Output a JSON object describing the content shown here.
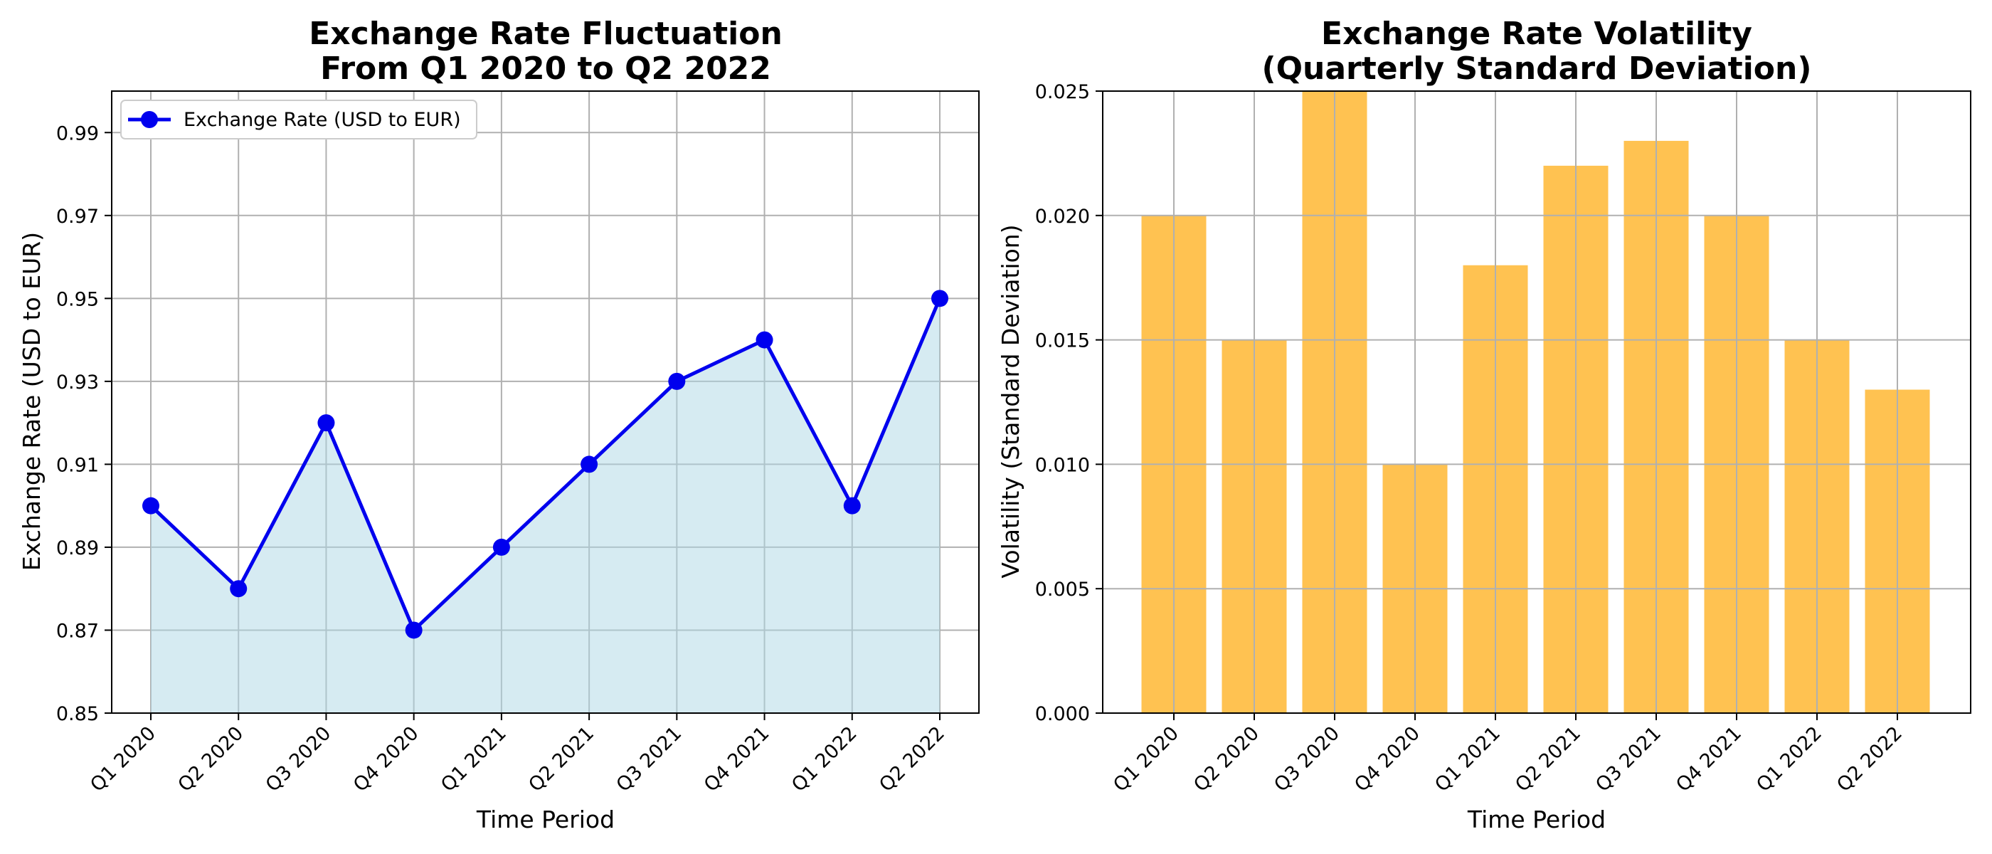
{
  "colors": {
    "line": "#0000ee",
    "fill": "#add8e6",
    "bar": "#ffb733",
    "grid": "#b0b0b0",
    "axis": "#000000"
  },
  "chart_data": [
    {
      "type": "line",
      "title": [
        "Exchange Rate Fluctuation",
        "From Q1 2020 to Q2 2022"
      ],
      "xlabel": "Time Period",
      "ylabel": "Exchange Rate (USD to EUR)",
      "categories": [
        "Q1 2020",
        "Q2 2020",
        "Q3 2020",
        "Q4 2020",
        "Q1 2021",
        "Q2 2021",
        "Q3 2021",
        "Q4 2021",
        "Q1 2022",
        "Q2 2022"
      ],
      "series": [
        {
          "name": "Exchange Rate (USD to EUR)",
          "values": [
            0.9,
            0.88,
            0.92,
            0.87,
            0.89,
            0.91,
            0.93,
            0.94,
            0.9,
            0.95
          ]
        }
      ],
      "ylim": [
        0.85,
        1.0
      ],
      "yticks": [
        "0.85",
        "0.87",
        "0.89",
        "0.91",
        "0.93",
        "0.95",
        "0.97",
        "0.99"
      ],
      "area_fill": true,
      "grid": true,
      "legend": "upper-left"
    },
    {
      "type": "bar",
      "title": [
        "Exchange Rate Volatility",
        "(Quarterly Standard Deviation)"
      ],
      "xlabel": "Time Period",
      "ylabel": "Volatility (Standard Deviation)",
      "categories": [
        "Q1 2020",
        "Q2 2020",
        "Q3 2020",
        "Q4 2020",
        "Q1 2021",
        "Q2 2021",
        "Q3 2021",
        "Q4 2021",
        "Q1 2022",
        "Q2 2022"
      ],
      "values": [
        0.02,
        0.015,
        0.025,
        0.01,
        0.018,
        0.022,
        0.023,
        0.02,
        0.015,
        0.013
      ],
      "ylim": [
        0,
        0.025
      ],
      "yticks": [
        "0.000",
        "0.005",
        "0.010",
        "0.015",
        "0.020",
        "0.025"
      ],
      "grid": true
    }
  ]
}
